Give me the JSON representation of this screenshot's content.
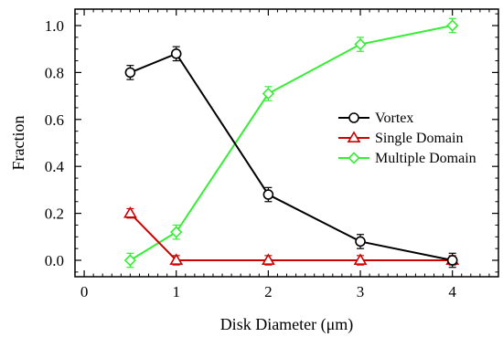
{
  "chart_data": {
    "type": "line",
    "xlabel": "Disk Diameter (μm)",
    "ylabel": "Fraction",
    "xlim": [
      -0.1,
      4.5
    ],
    "ylim": [
      -0.07,
      1.07
    ],
    "x_ticks": [
      0,
      1,
      2,
      3,
      4
    ],
    "y_ticks": [
      0.0,
      0.2,
      0.4,
      0.6,
      0.8,
      1.0
    ],
    "x_tick_labels": [
      "0",
      "1",
      "2",
      "3",
      "4"
    ],
    "y_tick_labels": [
      "0.0",
      "0.2",
      "0.4",
      "0.6",
      "0.8",
      "1.0"
    ],
    "grid": false,
    "legend_position": "right-middle",
    "series": [
      {
        "name": "Vortex",
        "color": "#000000",
        "marker": "circle",
        "x": [
          0.5,
          1,
          2,
          3,
          4
        ],
        "y": [
          0.8,
          0.88,
          0.28,
          0.08,
          0.0
        ],
        "err": [
          0.03,
          0.03,
          0.03,
          0.03,
          0.03
        ]
      },
      {
        "name": "Single Domain",
        "color": "#cc0000",
        "marker": "triangle",
        "x": [
          0.5,
          1,
          2,
          3,
          4
        ],
        "y": [
          0.2,
          0.0,
          0.0,
          0.0,
          0.0
        ],
        "err": [
          0.02,
          0.02,
          0.02,
          0.02,
          0.02
        ]
      },
      {
        "name": "Multiple Domain",
        "color": "#33ee33",
        "marker": "diamond",
        "x": [
          0.5,
          1,
          2,
          3,
          4
        ],
        "y": [
          0.0,
          0.12,
          0.71,
          0.92,
          1.0
        ],
        "err": [
          0.03,
          0.03,
          0.03,
          0.03,
          0.03
        ]
      }
    ]
  }
}
